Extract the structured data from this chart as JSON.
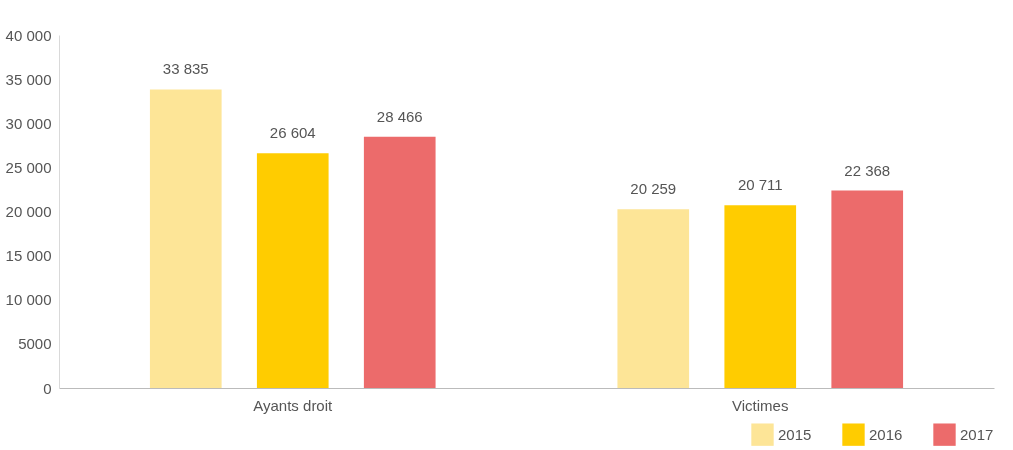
{
  "chart_data": {
    "type": "bar",
    "categories": [
      "Ayants droit",
      "Victimes"
    ],
    "series": [
      {
        "name": "2015",
        "color": "#fde597",
        "values": [
          33835,
          20259
        ],
        "value_labels": [
          "33 835",
          "20 259"
        ]
      },
      {
        "name": "2016",
        "color": "#ffcc00",
        "values": [
          26604,
          20711
        ],
        "value_labels": [
          "26 604",
          "20 711"
        ]
      },
      {
        "name": "2017",
        "color": "#ec6b6b",
        "values": [
          28466,
          22368
        ],
        "value_labels": [
          "28 466",
          "22 368"
        ]
      }
    ],
    "ylim": [
      0,
      40000
    ],
    "yticks": [
      0,
      5000,
      {
        "value": 10000,
        "label": "10 000"
      },
      {
        "value": 15000,
        "label": "15 000"
      },
      {
        "value": 20000,
        "label": "20 000"
      },
      {
        "value": 25000,
        "label": "25 000"
      },
      {
        "value": 30000,
        "label": "30 000"
      },
      {
        "value": 35000,
        "label": "35 000"
      },
      {
        "value": 40000,
        "label": "40 000"
      }
    ],
    "grid": false,
    "legend": "bottom right"
  }
}
